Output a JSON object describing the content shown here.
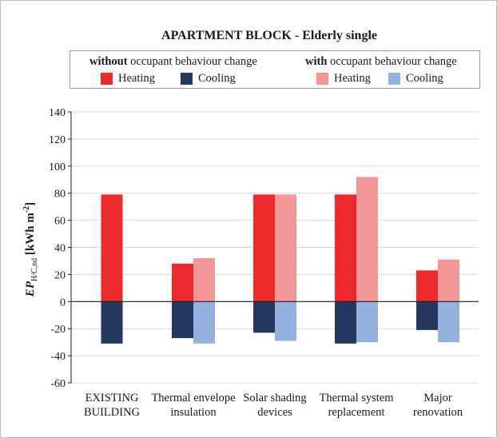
{
  "colors": {
    "heating_without": "#ec2a2a",
    "cooling_without": "#24375e",
    "heating_with": "#f29696",
    "cooling_with": "#93b3de",
    "grid": "#d9d9d9",
    "axis": "#1a1a1a"
  },
  "legend": {
    "group_without": {
      "strong": "without",
      "rest": " occupant behaviour change"
    },
    "group_with": {
      "strong": "with",
      "rest": " occupant behaviour change"
    },
    "heating_label": "Heating",
    "cooling_label": "Cooling"
  },
  "chart_data": {
    "type": "bar",
    "title": "APARTMENT BLOCK - Elderly single",
    "ylabel_main": "EP",
    "ylabel_sub": "H/C,nd",
    "ylabel_unit_prefix": " [kWh m",
    "ylabel_unit_sup": "-2",
    "ylabel_unit_suffix": "]",
    "xlabel": "",
    "ylim": [
      -60,
      140
    ],
    "yticks": [
      -60,
      -40,
      -20,
      0,
      20,
      40,
      60,
      80,
      100,
      120,
      140
    ],
    "grid": true,
    "legend_position": "top",
    "categories": [
      [
        "EXISTING",
        "BUILDING"
      ],
      [
        "Thermal envelope",
        "insulation"
      ],
      [
        "Solar shading",
        "devices"
      ],
      [
        "Thermal system",
        "replacement"
      ],
      [
        "Major",
        "renovation"
      ]
    ],
    "series": [
      {
        "name": "Heating (without occupant behaviour change)",
        "values": [
          79,
          28,
          79,
          79,
          23
        ]
      },
      {
        "name": "Cooling (without occupant behaviour change)",
        "values": [
          -31,
          -27,
          -23,
          -31,
          -21
        ]
      },
      {
        "name": "Heating (with occupant behaviour change)",
        "values": [
          null,
          32,
          79,
          92,
          31
        ]
      },
      {
        "name": "Cooling (with occupant behaviour change)",
        "values": [
          null,
          -31,
          -29,
          -30,
          -30
        ]
      }
    ]
  }
}
